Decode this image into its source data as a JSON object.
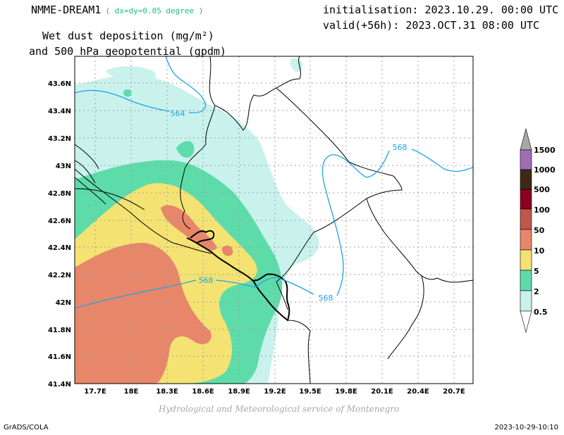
{
  "header": {
    "model_name": "NMME-DREAM1",
    "resolution": "( dx=dy=0.05 degree )",
    "init_line": "initialisation: 2023.10.29. 00:00 UTC",
    "valid_line": "valid(+56h): 2023.OCT.31 08:00 UTC",
    "title_line1": "Wet dust deposition (mg/m²)",
    "title_line2": "and 500 hPa geopotential (gpdm)"
  },
  "map": {
    "lat_labels": [
      "43.6N",
      "43.4N",
      "43.2N",
      "43N",
      "42.8N",
      "42.6N",
      "42.4N",
      "42.2N",
      "42N",
      "41.8N",
      "41.6N",
      "41.4N"
    ],
    "lon_labels": [
      "17.7E",
      "18E",
      "18.3E",
      "18.6E",
      "18.9E",
      "19.2E",
      "19.5E",
      "19.8E",
      "20.1E",
      "20.4E",
      "20.7E"
    ],
    "contour_labels": [
      "564",
      "568",
      "568",
      "568"
    ],
    "colors": {
      "c0_5": "#c9f2ec",
      "c2": "#5ddcaa",
      "c5": "#f4e373",
      "c10": "#e8866a",
      "c50": "#c0574c",
      "contour": "#1ea3e6"
    }
  },
  "legend": {
    "labels": [
      "1500",
      "1000",
      "500",
      "100",
      "50",
      "10",
      "5",
      "2",
      "0.5"
    ],
    "colors": [
      "#9f6fb5",
      "#3c2a14",
      "#8a0022",
      "#c0574c",
      "#e8866a",
      "#f4e373",
      "#5ddcaa",
      "#c9f2ec"
    ]
  },
  "footer": {
    "credit": "Hydrological and Meteorological service of Montenegro",
    "left": "GrADS/COLA",
    "right": "2023-10-29-10:10"
  }
}
